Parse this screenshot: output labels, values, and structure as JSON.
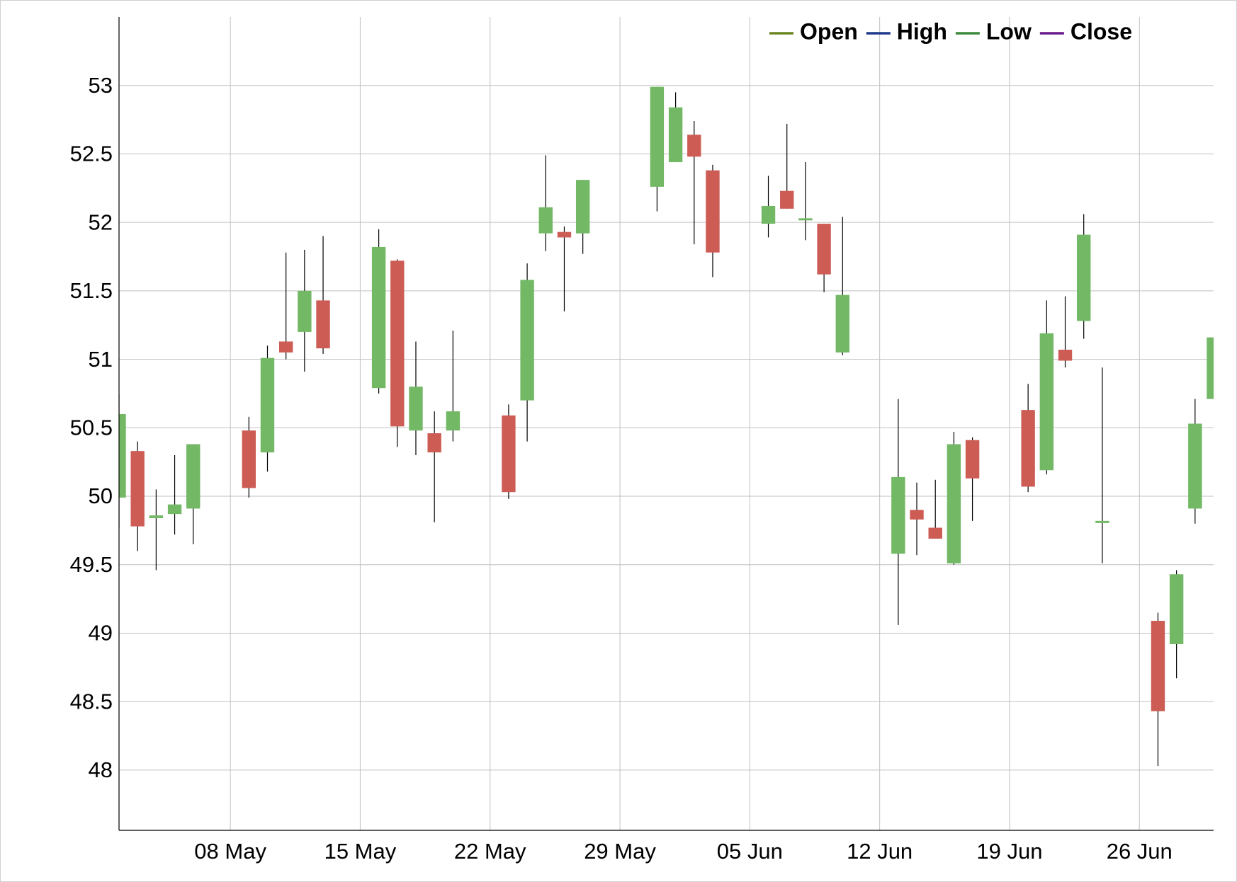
{
  "chart_data": {
    "type": "candlestick",
    "x": [
      "02 May",
      "03 May",
      "04 May",
      "05 May",
      "06 May",
      "09 May",
      "10 May",
      "11 May",
      "12 May",
      "13 May",
      "16 May",
      "17 May",
      "18 May",
      "19 May",
      "20 May",
      "23 May",
      "24 May",
      "25 May",
      "26 May",
      "27 May",
      "31 May",
      "01 Jun",
      "02 Jun",
      "03 Jun",
      "06 Jun",
      "07 Jun",
      "08 Jun",
      "09 Jun",
      "10 Jun",
      "13 Jun",
      "14 Jun",
      "15 Jun",
      "16 Jun",
      "17 Jun",
      "20 Jun",
      "21 Jun",
      "22 Jun",
      "23 Jun",
      "24 Jun",
      "27 Jun",
      "28 Jun",
      "29 Jun",
      "30 Jun"
    ],
    "series": [
      {
        "name": "Open",
        "color": "#6b8522",
        "values": [
          49.99,
          50.33,
          49.84,
          49.87,
          49.91,
          50.48,
          50.32,
          51.13,
          51.2,
          51.43,
          50.79,
          51.72,
          50.48,
          50.46,
          50.48,
          50.59,
          50.7,
          51.92,
          51.93,
          51.92,
          52.26,
          52.44,
          52.64,
          52.38,
          51.99,
          52.23,
          52.02,
          51.99,
          51.05,
          49.58,
          49.9,
          49.77,
          49.51,
          50.41,
          50.63,
          50.19,
          51.07,
          51.28,
          49.81,
          49.09,
          48.92,
          49.91,
          50.71
        ]
      },
      {
        "name": "High",
        "color": "#1f3a8a",
        "values": [
          50.75,
          50.4,
          50.05,
          50.3,
          50.38,
          50.58,
          51.1,
          51.78,
          51.8,
          51.9,
          51.95,
          51.73,
          51.13,
          50.62,
          51.21,
          50.67,
          51.7,
          52.49,
          51.97,
          52.31,
          52.99,
          52.95,
          52.74,
          52.42,
          52.34,
          52.72,
          52.44,
          51.99,
          52.04,
          50.71,
          50.1,
          50.12,
          50.47,
          50.43,
          50.82,
          51.43,
          51.46,
          52.06,
          50.94,
          49.15,
          49.46,
          50.71,
          51.16
        ]
      },
      {
        "name": "Low",
        "color": "#3b8a3b",
        "values": [
          49.77,
          49.6,
          49.46,
          49.72,
          49.65,
          49.99,
          50.18,
          51.0,
          50.91,
          51.04,
          50.75,
          50.36,
          50.3,
          49.81,
          50.4,
          49.98,
          50.4,
          51.79,
          51.35,
          51.77,
          52.08,
          52.44,
          51.84,
          51.6,
          51.89,
          52.1,
          51.87,
          51.49,
          51.03,
          49.06,
          49.57,
          49.69,
          49.5,
          49.82,
          50.03,
          50.16,
          50.94,
          51.15,
          49.51,
          48.03,
          48.67,
          49.8,
          50.71
        ]
      },
      {
        "name": "Close",
        "color": "#6a1b8a",
        "values": [
          50.6,
          49.78,
          49.86,
          49.94,
          50.38,
          50.06,
          51.01,
          51.05,
          51.5,
          51.08,
          51.82,
          50.51,
          50.8,
          50.32,
          50.62,
          50.03,
          51.58,
          52.11,
          51.89,
          52.31,
          52.99,
          52.84,
          52.48,
          51.78,
          52.12,
          52.1,
          52.03,
          51.62,
          51.47,
          50.14,
          49.83,
          49.69,
          50.38,
          50.13,
          50.07,
          51.19,
          50.99,
          51.91,
          49.82,
          48.43,
          49.43,
          50.53,
          51.16
        ]
      }
    ],
    "up_color": "#72b865",
    "down_color": "#cd5c55",
    "xlim": [
      "02 May",
      "30 Jun"
    ],
    "xticks": [
      "08 May",
      "15 May",
      "22 May",
      "29 May",
      "05 Jun",
      "12 Jun",
      "19 Jun",
      "26 Jun"
    ],
    "ylim": [
      47.56,
      53.5
    ],
    "yticks": [
      48,
      48.5,
      49,
      49.5,
      50,
      50.5,
      51,
      51.5,
      52,
      52.5,
      53
    ],
    "grid": true,
    "legend": "top-right"
  }
}
